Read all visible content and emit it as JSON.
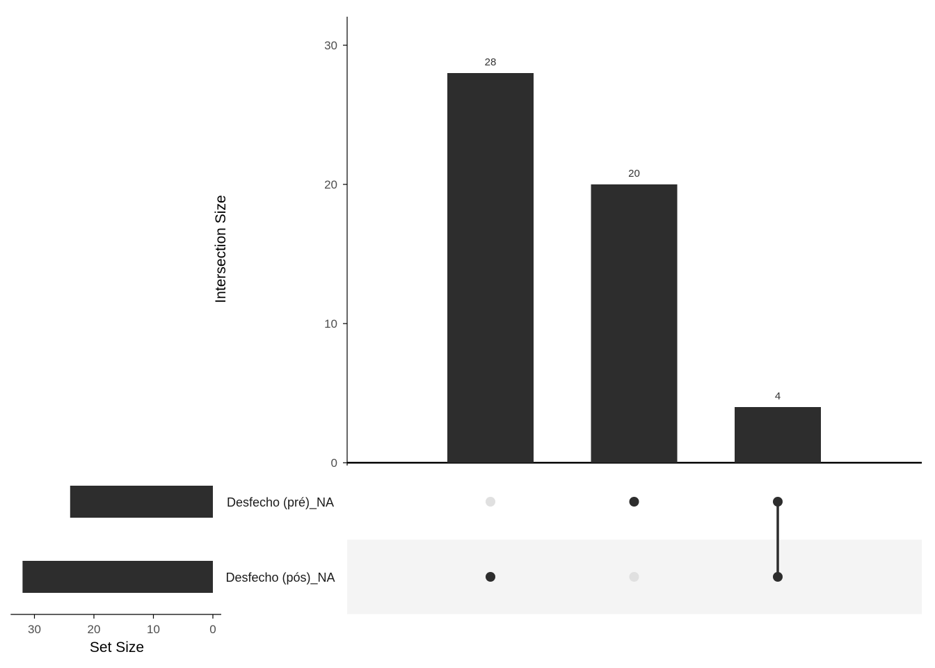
{
  "chart_data": {
    "type": "bar",
    "subtype": "upset",
    "ylabel": "Intersection Size",
    "set_size_label": "Set Size",
    "ylim": [
      0,
      32
    ],
    "yticks": [
      0,
      10,
      20,
      30
    ],
    "set_size_ticks": [
      30,
      20,
      10,
      0
    ],
    "set_size_xlim": [
      0,
      34
    ],
    "sets": [
      {
        "name": "Desfecho (pré)_NA",
        "size": 24
      },
      {
        "name": "Desfecho (pós)_NA",
        "size": 32
      }
    ],
    "intersections": [
      {
        "value": 28,
        "label": "28",
        "members": [
          false,
          true
        ]
      },
      {
        "value": 20,
        "label": "20",
        "members": [
          true,
          false
        ]
      },
      {
        "value": 4,
        "label": "4",
        "members": [
          true,
          true
        ]
      }
    ],
    "colors": {
      "bar": "#2d2d2d",
      "dot_active": "#2d2d2d",
      "dot_inactive": "#e0e0e0",
      "stripe": "#f4f4f4",
      "axis": "#000000"
    }
  }
}
